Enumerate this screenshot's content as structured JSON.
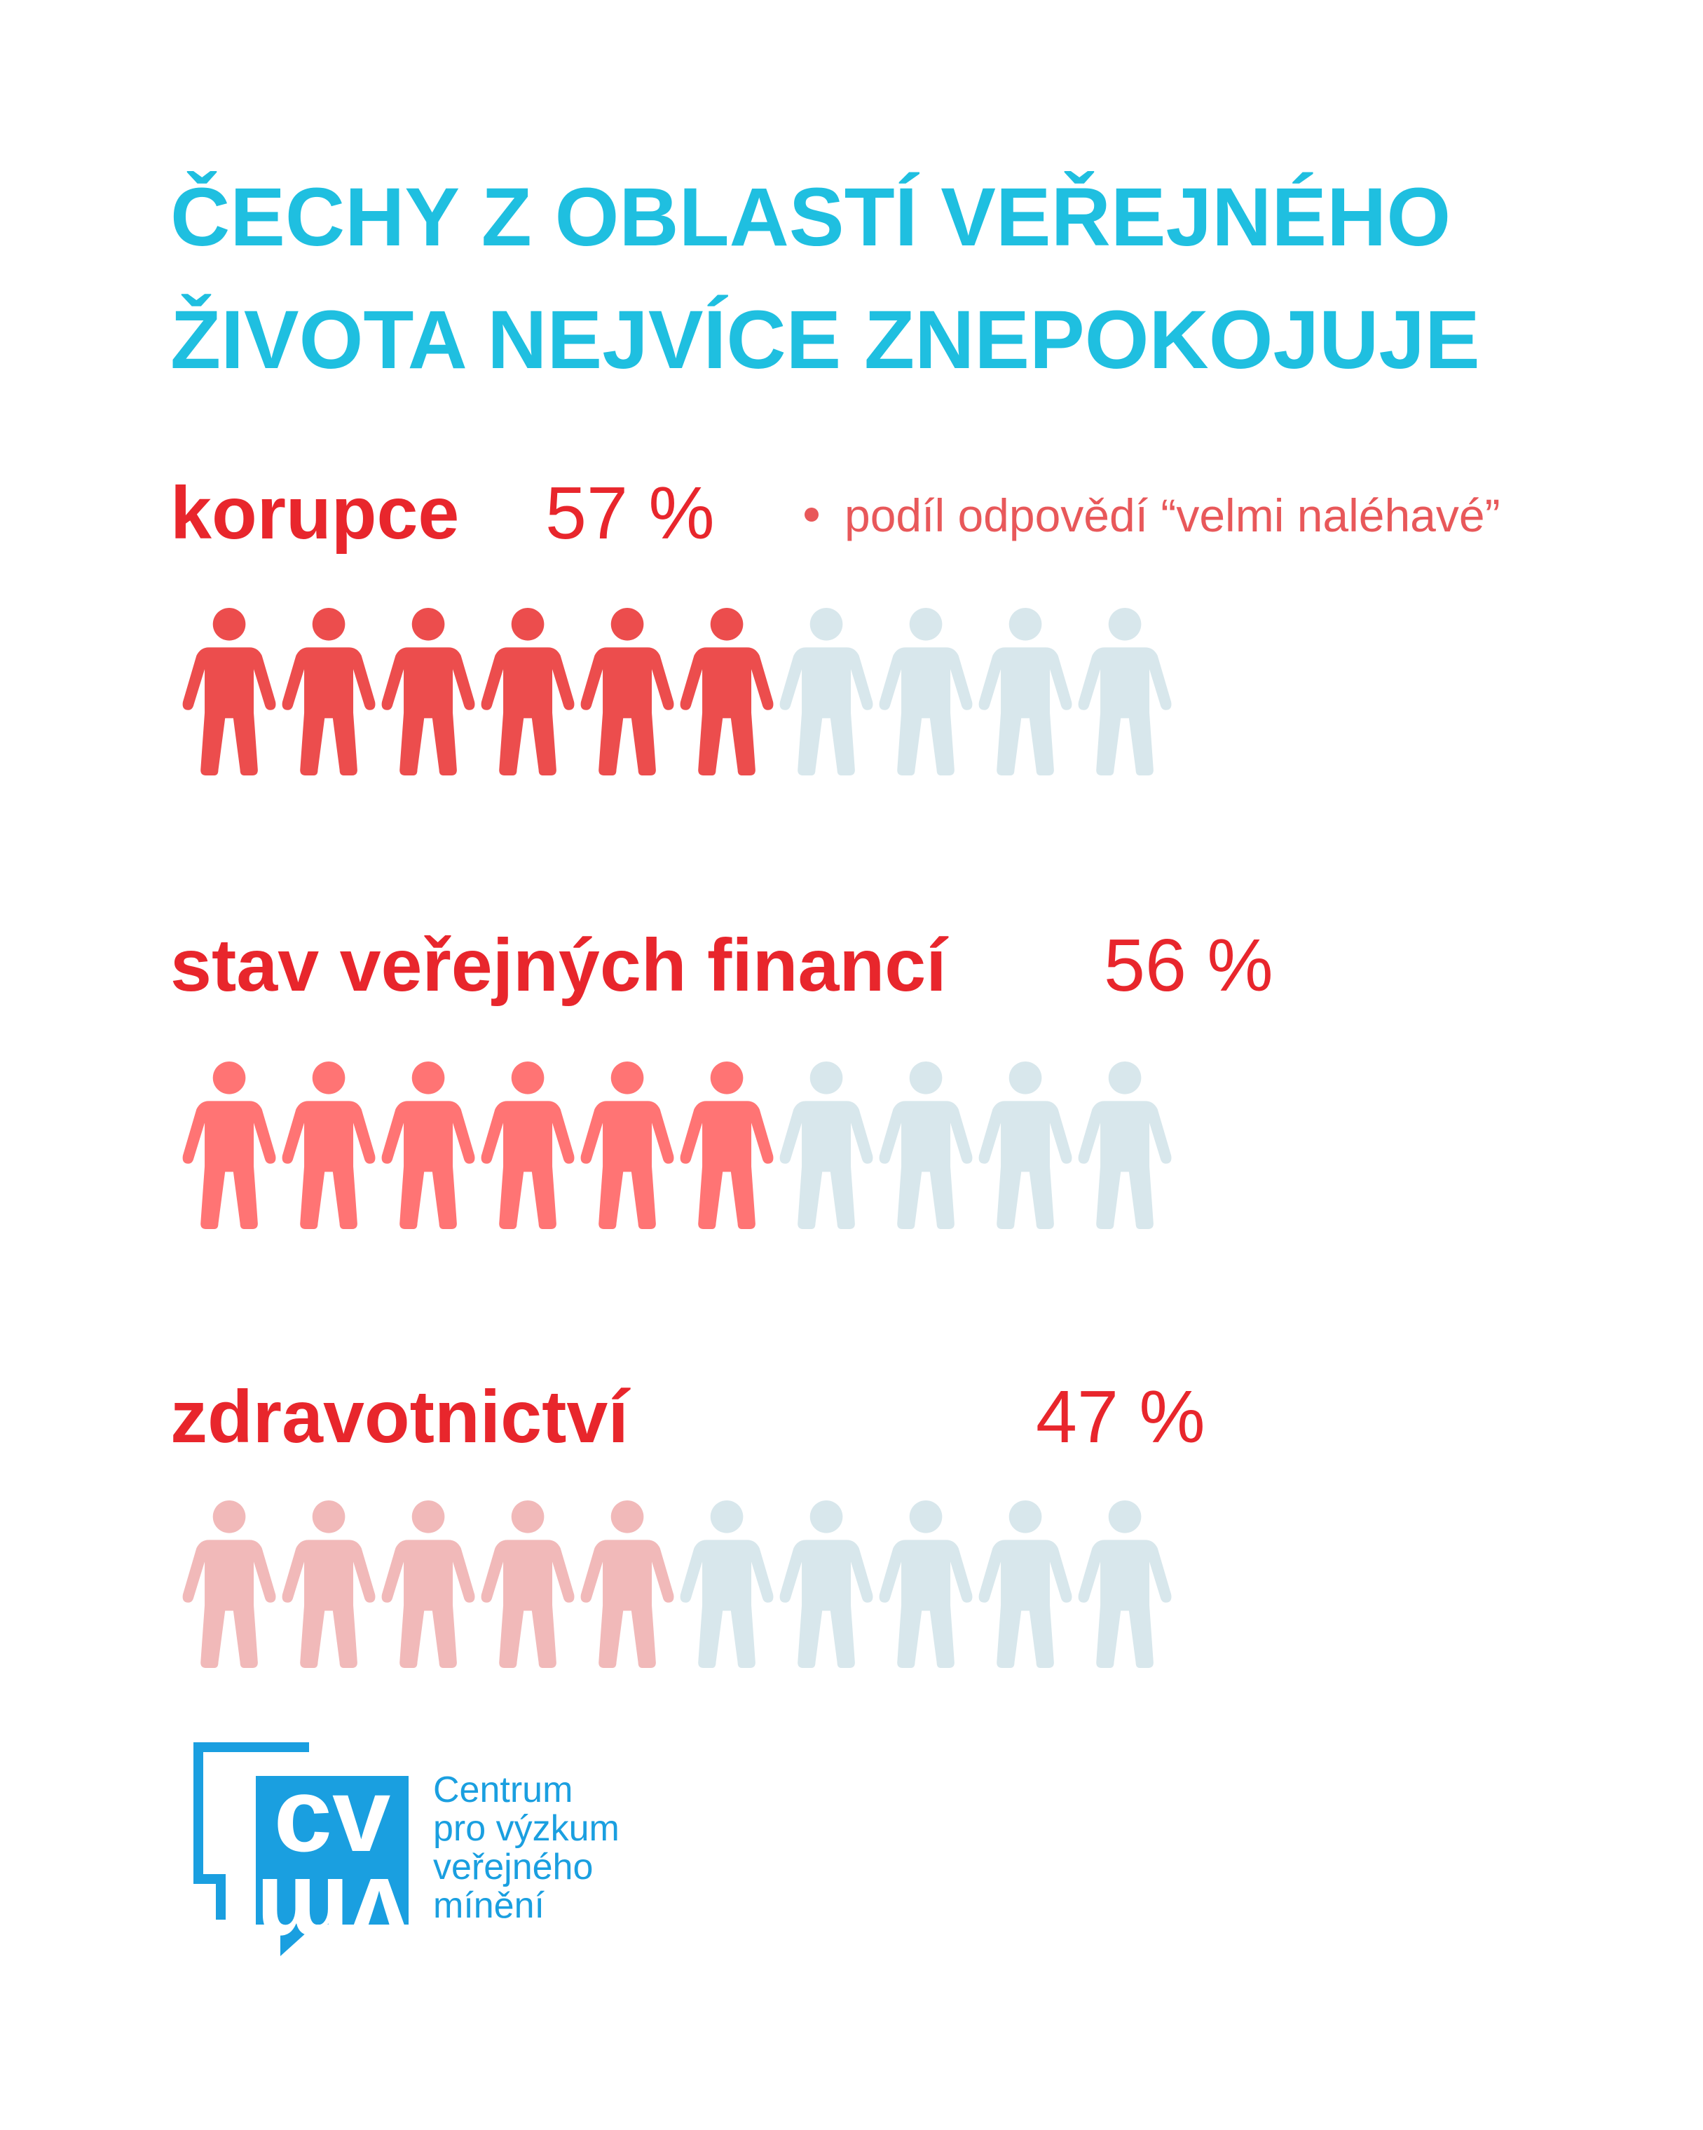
{
  "chart_data": {
    "type": "pictogram",
    "title": [
      "ČECHY Z OBLASTÍ VEŘEJNÉHO",
      "ŽIVOTA NEJVÍCE ZNEPOKOJUJE"
    ],
    "note": "podíl odpovědí “velmi naléhavé”",
    "categories": [
      "korupce",
      "stav veřejných financí",
      "zdravotnictví"
    ],
    "values": [
      57,
      56,
      47
    ],
    "value_labels": [
      "57 %",
      "56 %",
      "47 %"
    ],
    "colors": [
      "#ec4d4d",
      "#ff7474",
      "#f1b9b9"
    ],
    "empty_color": "#d8e7ec",
    "xlim": [
      0,
      100
    ]
  },
  "logo": {
    "mark_top": "cv",
    "mark_bottom": "vm",
    "text": [
      "Centrum",
      "pro výzkum",
      "veřejného",
      "mínění"
    ]
  }
}
